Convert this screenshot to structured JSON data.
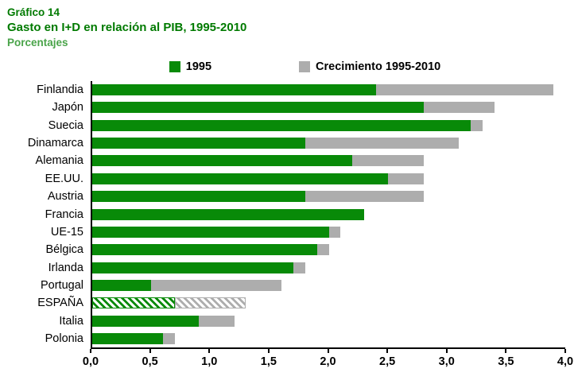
{
  "header": {
    "kicker": "Gráfico 14",
    "title": "Gasto en I+D en relación al PIB, 1995-2010",
    "subtitle": "Porcentajes"
  },
  "legend": {
    "items": [
      {
        "label": "1995",
        "color": "#088a08"
      },
      {
        "label": "Crecimiento 1995-2010",
        "color": "#adadad"
      }
    ]
  },
  "colors": {
    "title_green": "#007a00",
    "subtitle_green": "#4aa44a",
    "bar_green": "#088a08",
    "bar_gray": "#adadad",
    "axis": "#000000"
  },
  "chart_data": {
    "type": "bar",
    "orientation": "horizontal",
    "stacked": true,
    "title": "Gasto en I+D en relación al PIB, 1995-2010",
    "subtitle": "Porcentajes",
    "categories": [
      "Finlandia",
      "Japón",
      "Suecia",
      "Dinamarca",
      "Alemania",
      "EE.UU.",
      "Austria",
      "Francia",
      "UE-15",
      "Bélgica",
      "Irlanda",
      "Portugal",
      "ESPAÑA",
      "Italia",
      "Polonia"
    ],
    "series": [
      {
        "name": "1995",
        "color": "#088a08",
        "values": [
          2.4,
          2.8,
          3.2,
          1.8,
          2.2,
          2.5,
          1.8,
          2.3,
          2.0,
          1.9,
          1.7,
          0.5,
          0.7,
          0.9,
          0.6
        ]
      },
      {
        "name": "Crecimiento 1995-2010",
        "color": "#adadad",
        "values": [
          1.5,
          0.6,
          0.1,
          1.3,
          0.6,
          0.3,
          1.0,
          0.0,
          0.1,
          0.1,
          0.1,
          1.1,
          0.6,
          0.3,
          0.1
        ]
      }
    ],
    "totals_2010": [
      3.9,
      3.4,
      3.3,
      3.1,
      2.8,
      2.8,
      2.8,
      2.3,
      2.1,
      2.0,
      1.8,
      1.6,
      1.3,
      1.2,
      0.7
    ],
    "highlight_category": "ESPAÑA",
    "highlight_style": "hatched",
    "xlim": [
      0,
      4.0
    ],
    "x_tick_values": [
      0,
      0.5,
      1.0,
      1.5,
      2.0,
      2.5,
      3.0,
      3.5,
      4.0
    ],
    "x_ticks": [
      "0,0",
      "0,5",
      "1,0",
      "1,5",
      "2,0",
      "2,5",
      "3,0",
      "3,5",
      "4,0"
    ],
    "grid": false,
    "legend_position": "top"
  }
}
